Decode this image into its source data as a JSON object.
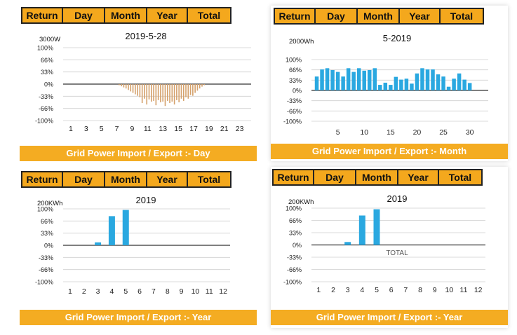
{
  "tabs": [
    "Return",
    "Day",
    "Month",
    "Year",
    "Total"
  ],
  "colors": {
    "accent": "#f4ac22",
    "bar_day": "#d4a06a",
    "bar_blue": "#2aa8e0",
    "grid": "#cfcfcf"
  },
  "panels": [
    {
      "banner": "Grid Power Import / Export :- Day",
      "chart_data": {
        "type": "bar",
        "title": "2019-5-28",
        "unit": "3000W",
        "y_ticks": [
          "100%",
          "66%",
          "33%",
          "0%",
          "-33%",
          "-66%",
          "-100%"
        ],
        "ylim": [
          -100,
          100
        ],
        "xlim": [
          0,
          24.5
        ],
        "x_ticks": [
          1,
          3,
          5,
          7,
          9,
          11,
          13,
          15,
          17,
          19,
          21,
          23
        ],
        "x": [
          7.3,
          7.6,
          7.9,
          8.2,
          8.5,
          8.8,
          9.1,
          9.4,
          9.7,
          10.0,
          10.3,
          10.6,
          10.9,
          11.2,
          11.5,
          11.8,
          12.1,
          12.4,
          12.7,
          13.0,
          13.3,
          13.6,
          13.9,
          14.2,
          14.5,
          14.8,
          15.1,
          15.4,
          15.7,
          16.0,
          16.3,
          16.6,
          16.9,
          17.2,
          17.5,
          17.8,
          18.1,
          18.4
        ],
        "values": [
          -3,
          -6,
          -9,
          -12,
          -16,
          -20,
          -24,
          -28,
          -32,
          -36,
          -52,
          -40,
          -56,
          -42,
          -48,
          -46,
          -58,
          -44,
          -50,
          -48,
          -60,
          -46,
          -52,
          -48,
          -56,
          -44,
          -50,
          -40,
          -46,
          -36,
          -40,
          -30,
          -32,
          -24,
          -18,
          -12,
          -7,
          -3
        ]
      }
    },
    {
      "banner": "Grid Power Import / Export :- Month",
      "chart_data": {
        "type": "bar",
        "title": "5-2019",
        "unit": "2000Wh",
        "y_ticks": [
          "100%",
          "66%",
          "33%",
          "0%",
          "-33%",
          "-66%",
          "-100%"
        ],
        "ylim": [
          -100,
          100
        ],
        "xlim": [
          0,
          33.5
        ],
        "x_ticks": [
          5,
          10,
          15,
          20,
          25,
          30
        ],
        "x": [
          1,
          2,
          3,
          4,
          5,
          6,
          7,
          8,
          9,
          10,
          11,
          12,
          13,
          14,
          15,
          16,
          17,
          18,
          19,
          20,
          21,
          22,
          23,
          24,
          25,
          26,
          27,
          28,
          29,
          30,
          31,
          32
        ],
        "values": [
          45,
          68,
          72,
          66,
          60,
          45,
          72,
          60,
          72,
          64,
          66,
          72,
          18,
          25,
          18,
          44,
          35,
          38,
          22,
          55,
          72,
          68,
          68,
          52,
          45,
          12,
          38,
          55,
          35,
          24,
          0,
          0
        ]
      }
    },
    {
      "banner": "Grid Power Import / Export :- Year",
      "chart_data": {
        "type": "bar",
        "title": "2019",
        "unit": "200KWh",
        "y_ticks": [
          "100%",
          "66%",
          "33%",
          "0%",
          "-33%",
          "-66%",
          "-100%"
        ],
        "ylim": [
          -100,
          100
        ],
        "xlim": [
          0.5,
          12.5
        ],
        "x_ticks": [
          1,
          2,
          3,
          4,
          5,
          6,
          7,
          8,
          9,
          10,
          11,
          12
        ],
        "x": [
          1,
          2,
          3,
          4,
          5,
          6,
          7,
          8,
          9,
          10,
          11,
          12
        ],
        "values": [
          0,
          0,
          8,
          80,
          97,
          0,
          0,
          0,
          0,
          0,
          0,
          0
        ]
      }
    },
    {
      "banner": "Grid Power Import / Export :- Year",
      "chart_data": {
        "type": "bar",
        "title": "2019",
        "unit": "200KWh",
        "annotation": "TOTAL",
        "y_ticks": [
          "100%",
          "66%",
          "33%",
          "0%",
          "-33%",
          "-66%",
          "-100%"
        ],
        "ylim": [
          -100,
          100
        ],
        "xlim": [
          0.5,
          12.5
        ],
        "x_ticks": [
          1,
          2,
          3,
          4,
          5,
          6,
          7,
          8,
          9,
          10,
          11,
          12
        ],
        "x": [
          1,
          2,
          3,
          4,
          5,
          6,
          7,
          8,
          9,
          10,
          11,
          12
        ],
        "values": [
          0,
          0,
          8,
          80,
          97,
          0,
          0,
          0,
          0,
          0,
          0,
          0
        ]
      }
    }
  ]
}
